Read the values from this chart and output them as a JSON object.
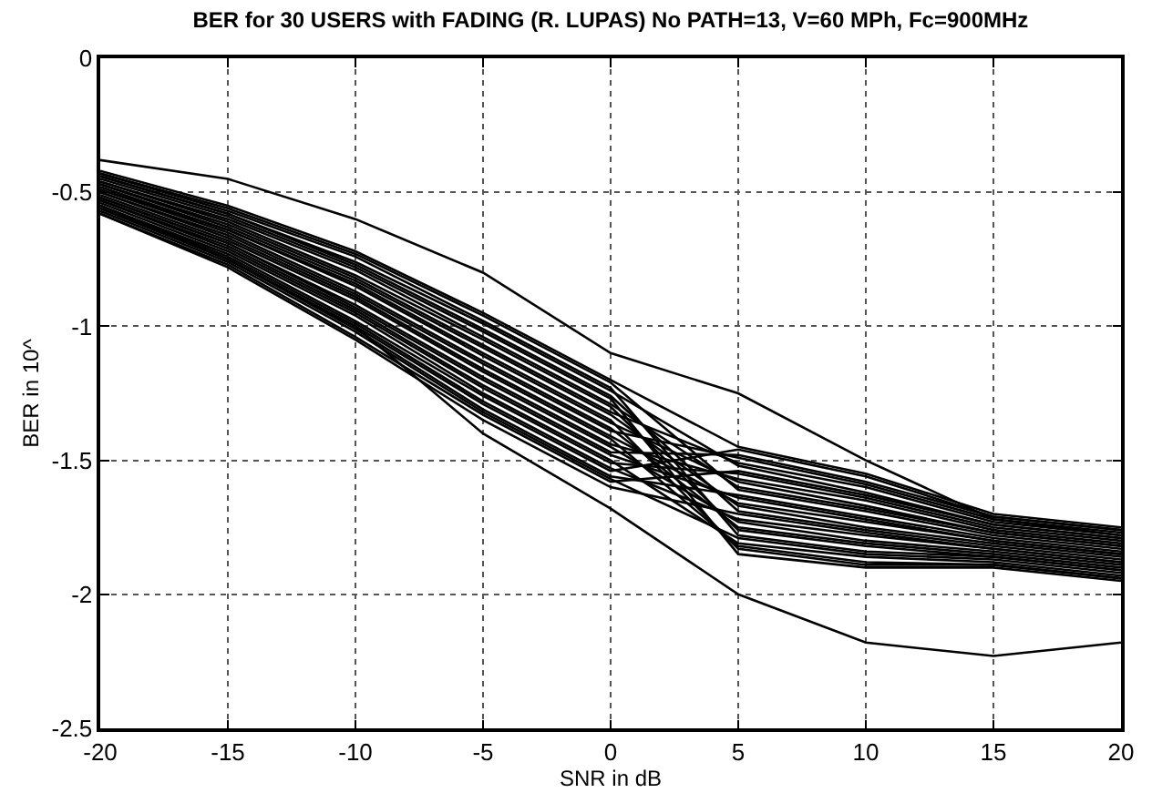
{
  "chart_data": {
    "type": "line",
    "title": "BER for 30 USERS with FADING (R. LUPAS) No PATH=13, V=60 MPh, Fc=900MHz",
    "xlabel": "SNR in dB",
    "ylabel": "BER in 10^",
    "x": [
      -20,
      -15,
      -10,
      -5,
      0,
      5,
      10,
      15,
      20
    ],
    "xlim": [
      -20,
      20
    ],
    "xticks": [
      -20,
      -15,
      -10,
      -5,
      0,
      5,
      10,
      15,
      20
    ],
    "ylim": [
      -2.5,
      0
    ],
    "yticks": [
      -2.5,
      -2,
      -1.5,
      -1,
      -0.5,
      0
    ],
    "grid": true,
    "line_style": "solid",
    "marker": "none",
    "series": [
      {
        "color": "#000000",
        "values": [
          -0.38,
          -0.45,
          -0.6,
          -0.8,
          -1.1,
          -1.25,
          -1.5,
          -1.72,
          -1.78
        ]
      },
      {
        "color": "#000000",
        "values": [
          -0.55,
          -0.75,
          -1.0,
          -1.4,
          -1.68,
          -2.0,
          -2.18,
          -2.23,
          -2.18
        ]
      },
      {
        "color": "#000000",
        "values": [
          -0.42,
          -0.55,
          -0.72,
          -0.95,
          -1.2,
          -1.45,
          -1.55,
          -1.7,
          -1.75
        ]
      },
      {
        "color": "#000000",
        "values": [
          -0.43,
          -0.56,
          -0.73,
          -0.96,
          -1.21,
          -1.61,
          -1.69,
          -1.78,
          -1.83
        ]
      },
      {
        "color": "#000000",
        "values": [
          -0.43,
          -0.57,
          -0.74,
          -0.98,
          -1.23,
          -1.78,
          -1.84,
          -1.86,
          -1.91
        ]
      },
      {
        "color": "#000000",
        "values": [
          -0.44,
          -0.58,
          -0.76,
          -0.99,
          -1.24,
          -1.52,
          -1.62,
          -1.74,
          -1.79
        ]
      },
      {
        "color": "#000000",
        "values": [
          -0.44,
          -0.58,
          -0.77,
          -1.01,
          -1.26,
          -1.69,
          -1.76,
          -1.82,
          -1.87
        ]
      },
      {
        "color": "#000000",
        "values": [
          -0.45,
          -0.59,
          -0.78,
          -1.02,
          -1.27,
          -1.85,
          -1.9,
          -1.9,
          -1.95
        ]
      },
      {
        "color": "#000000",
        "values": [
          -0.46,
          -0.6,
          -0.79,
          -1.04,
          -1.29,
          -1.6,
          -1.68,
          -1.77,
          -1.82
        ]
      },
      {
        "color": "#000000",
        "values": [
          -0.46,
          -0.61,
          -0.81,
          -1.05,
          -1.3,
          -1.76,
          -1.82,
          -1.86,
          -1.91
        ]
      },
      {
        "color": "#000000",
        "values": [
          -0.47,
          -0.62,
          -0.82,
          -1.07,
          -1.32,
          -1.51,
          -1.6,
          -1.73,
          -1.78
        ]
      },
      {
        "color": "#000000",
        "values": [
          -0.47,
          -0.63,
          -0.83,
          -1.08,
          -1.33,
          -1.67,
          -1.75,
          -1.81,
          -1.86
        ]
      },
      {
        "color": "#000000",
        "values": [
          -0.48,
          -0.64,
          -0.84,
          -1.1,
          -1.35,
          -1.83,
          -1.89,
          -1.89,
          -1.94
        ]
      },
      {
        "color": "#000000",
        "values": [
          -0.49,
          -0.64,
          -0.85,
          -1.11,
          -1.36,
          -1.58,
          -1.67,
          -1.77,
          -1.82
        ]
      },
      {
        "color": "#000000",
        "values": [
          -0.49,
          -0.65,
          -0.87,
          -1.13,
          -1.38,
          -1.75,
          -1.81,
          -1.85,
          -1.9
        ]
      },
      {
        "color": "#000000",
        "values": [
          -0.5,
          -0.66,
          -0.88,
          -1.14,
          -1.39,
          -1.49,
          -1.59,
          -1.72,
          -1.77
        ]
      },
      {
        "color": "#000000",
        "values": [
          -0.5,
          -0.67,
          -0.89,
          -1.16,
          -1.41,
          -1.66,
          -1.73,
          -1.8,
          -1.85
        ]
      },
      {
        "color": "#000000",
        "values": [
          -0.51,
          -0.68,
          -0.9,
          -1.17,
          -1.42,
          -1.82,
          -1.88,
          -1.89,
          -1.94
        ]
      },
      {
        "color": "#000000",
        "values": [
          -0.52,
          -0.69,
          -0.92,
          -1.19,
          -1.44,
          -1.57,
          -1.65,
          -1.76,
          -1.81
        ]
      },
      {
        "color": "#000000",
        "values": [
          -0.52,
          -0.69,
          -0.93,
          -1.2,
          -1.45,
          -1.73,
          -1.8,
          -1.84,
          -1.89
        ]
      },
      {
        "color": "#000000",
        "values": [
          -0.53,
          -0.7,
          -0.94,
          -1.22,
          -1.47,
          -1.48,
          -1.58,
          -1.71,
          -1.76
        ]
      },
      {
        "color": "#000000",
        "values": [
          -0.53,
          -0.71,
          -0.95,
          -1.23,
          -1.48,
          -1.64,
          -1.72,
          -1.8,
          -1.85
        ]
      },
      {
        "color": "#000000",
        "values": [
          -0.54,
          -0.72,
          -0.96,
          -1.25,
          -1.5,
          -1.81,
          -1.86,
          -1.88,
          -1.93
        ]
      },
      {
        "color": "#000000",
        "values": [
          -0.55,
          -0.73,
          -0.98,
          -1.26,
          -1.51,
          -1.55,
          -1.64,
          -1.75,
          -1.8
        ]
      },
      {
        "color": "#000000",
        "values": [
          -0.55,
          -0.74,
          -0.99,
          -1.28,
          -1.53,
          -1.72,
          -1.78,
          -1.83,
          -1.88
        ]
      },
      {
        "color": "#000000",
        "values": [
          -0.56,
          -0.75,
          -1.0,
          -1.29,
          -1.54,
          -1.46,
          -1.56,
          -1.71,
          -1.76
        ]
      },
      {
        "color": "#000000",
        "values": [
          -0.56,
          -0.75,
          -1.01,
          -1.31,
          -1.56,
          -1.63,
          -1.71,
          -1.79,
          -1.84
        ]
      },
      {
        "color": "#000000",
        "values": [
          -0.57,
          -0.76,
          -1.02,
          -1.32,
          -1.57,
          -1.79,
          -1.85,
          -1.87,
          -1.92
        ]
      },
      {
        "color": "#000000",
        "values": [
          -0.58,
          -0.77,
          -1.04,
          -1.33,
          -1.58,
          -1.54,
          -1.63,
          -1.74,
          -1.79
        ]
      },
      {
        "color": "#000000",
        "values": [
          -0.58,
          -0.78,
          -1.05,
          -1.35,
          -1.6,
          -1.7,
          -1.77,
          -1.83,
          -1.88
        ]
      }
    ]
  }
}
